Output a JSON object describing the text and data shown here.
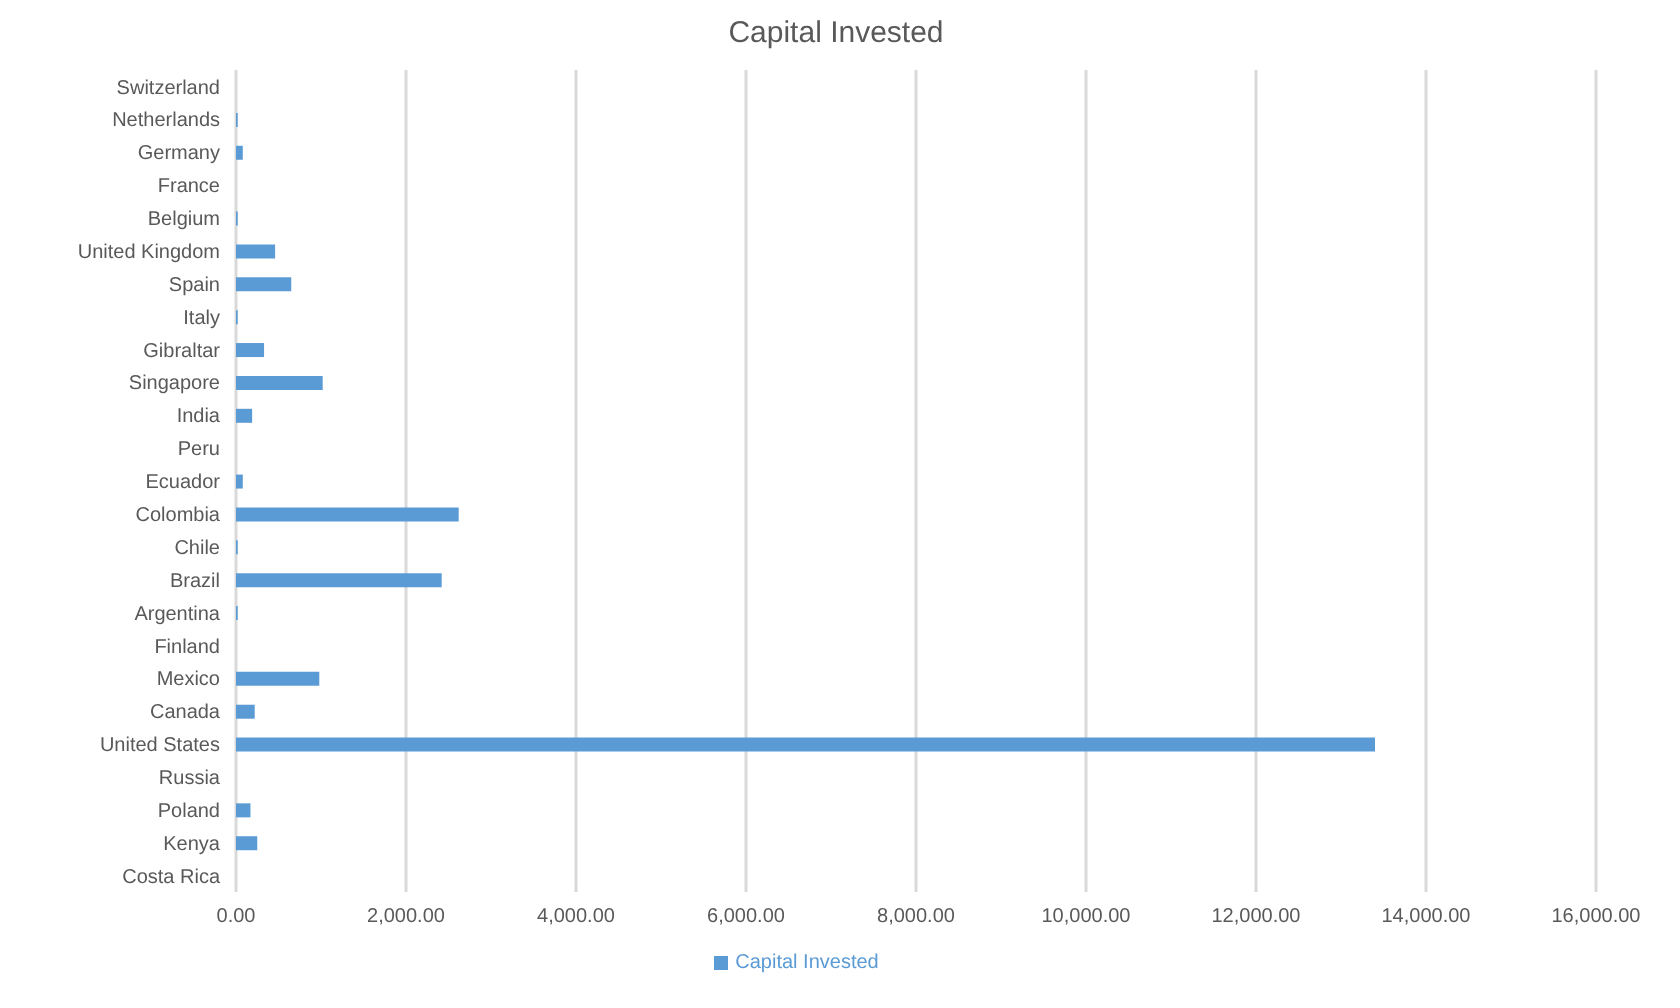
{
  "chart_data": {
    "type": "bar",
    "orientation": "horizontal",
    "title": "Capital Invested",
    "categories": [
      "Switzerland",
      "Netherlands",
      "Germany",
      "France",
      "Belgium",
      "United Kingdom",
      "Spain",
      "Italy",
      "Gibraltar",
      "Singapore",
      "India",
      "Peru",
      "Ecuador",
      "Colombia",
      "Chile",
      "Brazil",
      "Argentina",
      "Finland",
      "Mexico",
      "Canada",
      "United States",
      "Russia",
      "Poland",
      "Kenya",
      "Costa Rica"
    ],
    "series": [
      {
        "name": "Capital Invested",
        "color": "#5b9bd5",
        "values": [
          0,
          20,
          80,
          0,
          20,
          460,
          650,
          20,
          330,
          1020,
          190,
          0,
          80,
          2620,
          20,
          2420,
          20,
          0,
          980,
          220,
          13400,
          0,
          170,
          250,
          0
        ]
      }
    ],
    "xlim": [
      0,
      16000
    ],
    "xticks": [
      {
        "value": 0,
        "label": "0.00"
      },
      {
        "value": 2000,
        "label": "2,000.00"
      },
      {
        "value": 4000,
        "label": "4,000.00"
      },
      {
        "value": 6000,
        "label": "6,000.00"
      },
      {
        "value": 8000,
        "label": "8,000.00"
      },
      {
        "value": 10000,
        "label": "10,000.00"
      },
      {
        "value": 12000,
        "label": "12,000.00"
      },
      {
        "value": 14000,
        "label": "14,000.00"
      },
      {
        "value": 16000,
        "label": "16,000.00"
      }
    ],
    "grid": "x",
    "legend": "bottom"
  }
}
